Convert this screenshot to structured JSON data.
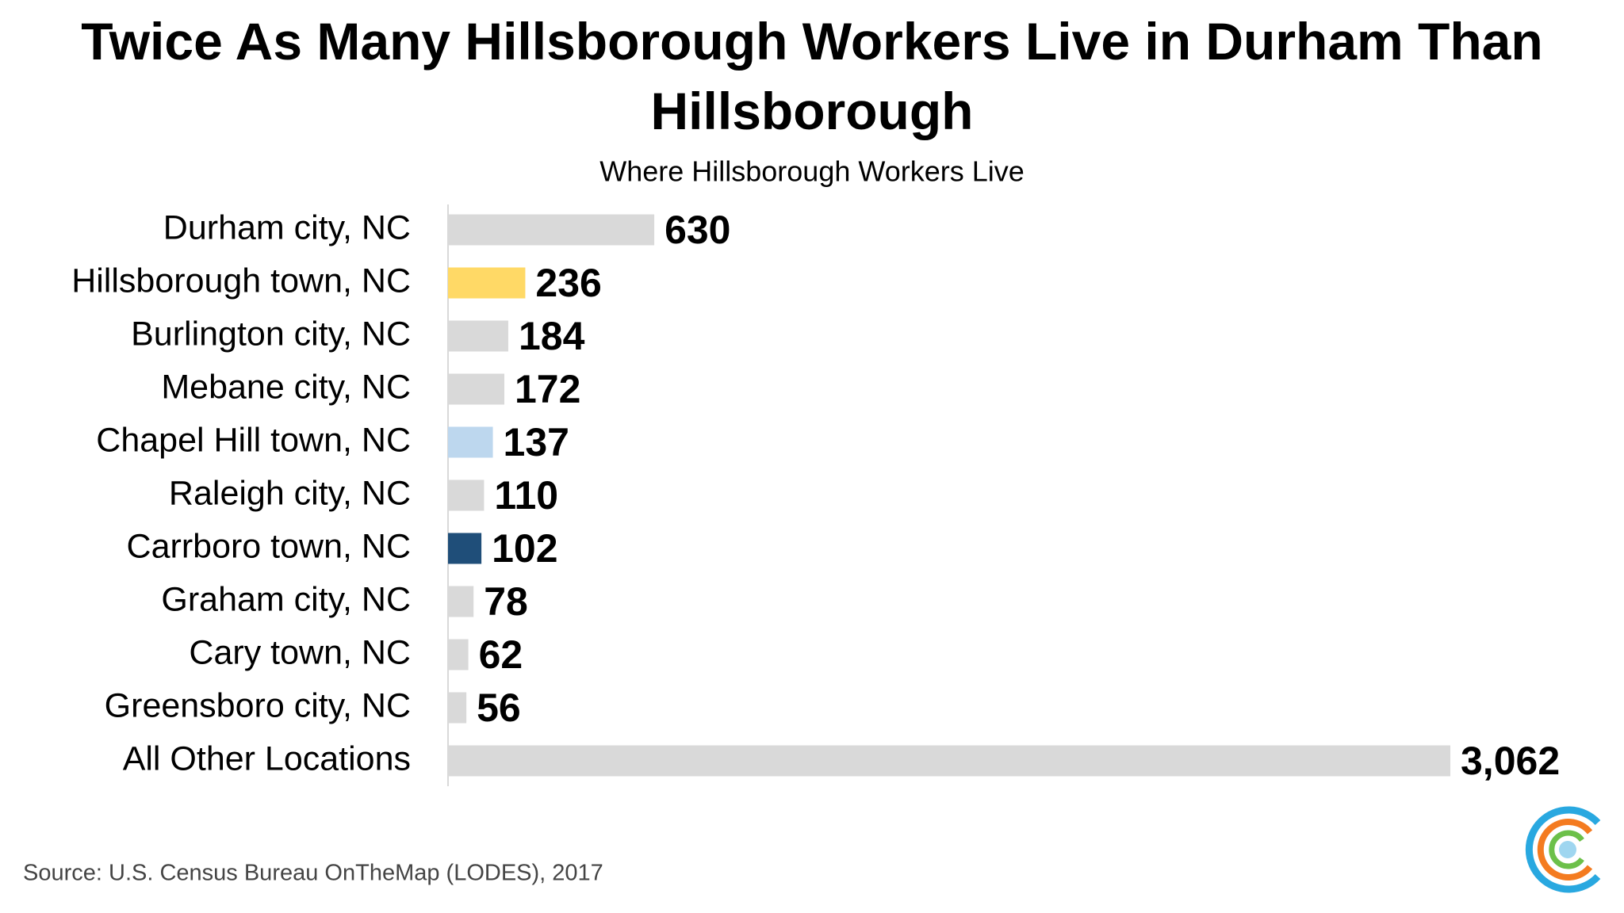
{
  "chart_data": {
    "type": "bar",
    "orientation": "horizontal",
    "title": "Twice As Many Hillsborough Workers Live in Durham Than Hillsborough",
    "subtitle": "Where Hillsborough Workers Live",
    "categories": [
      "Durham city, NC",
      "Hillsborough town, NC",
      "Burlington city, NC",
      "Mebane city, NC",
      "Chapel Hill town, NC",
      "Raleigh city, NC",
      "Carrboro town, NC",
      "Graham city, NC",
      "Cary town, NC",
      "Greensboro city, NC",
      "All Other Locations"
    ],
    "values": [
      630,
      236,
      184,
      172,
      137,
      110,
      102,
      78,
      62,
      56,
      3062
    ],
    "value_labels": [
      "630",
      "236",
      "184",
      "172",
      "137",
      "110",
      "102",
      "78",
      "62",
      "56",
      "3,062"
    ],
    "colors": [
      "#d9d9d9",
      "#ffd966",
      "#d9d9d9",
      "#d9d9d9",
      "#bdd7ee",
      "#d9d9d9",
      "#1f4e79",
      "#d9d9d9",
      "#d9d9d9",
      "#d9d9d9",
      "#d9d9d9"
    ],
    "source": "Source: U.S. Census Bureau OnTheMap (LODES), 2017"
  }
}
